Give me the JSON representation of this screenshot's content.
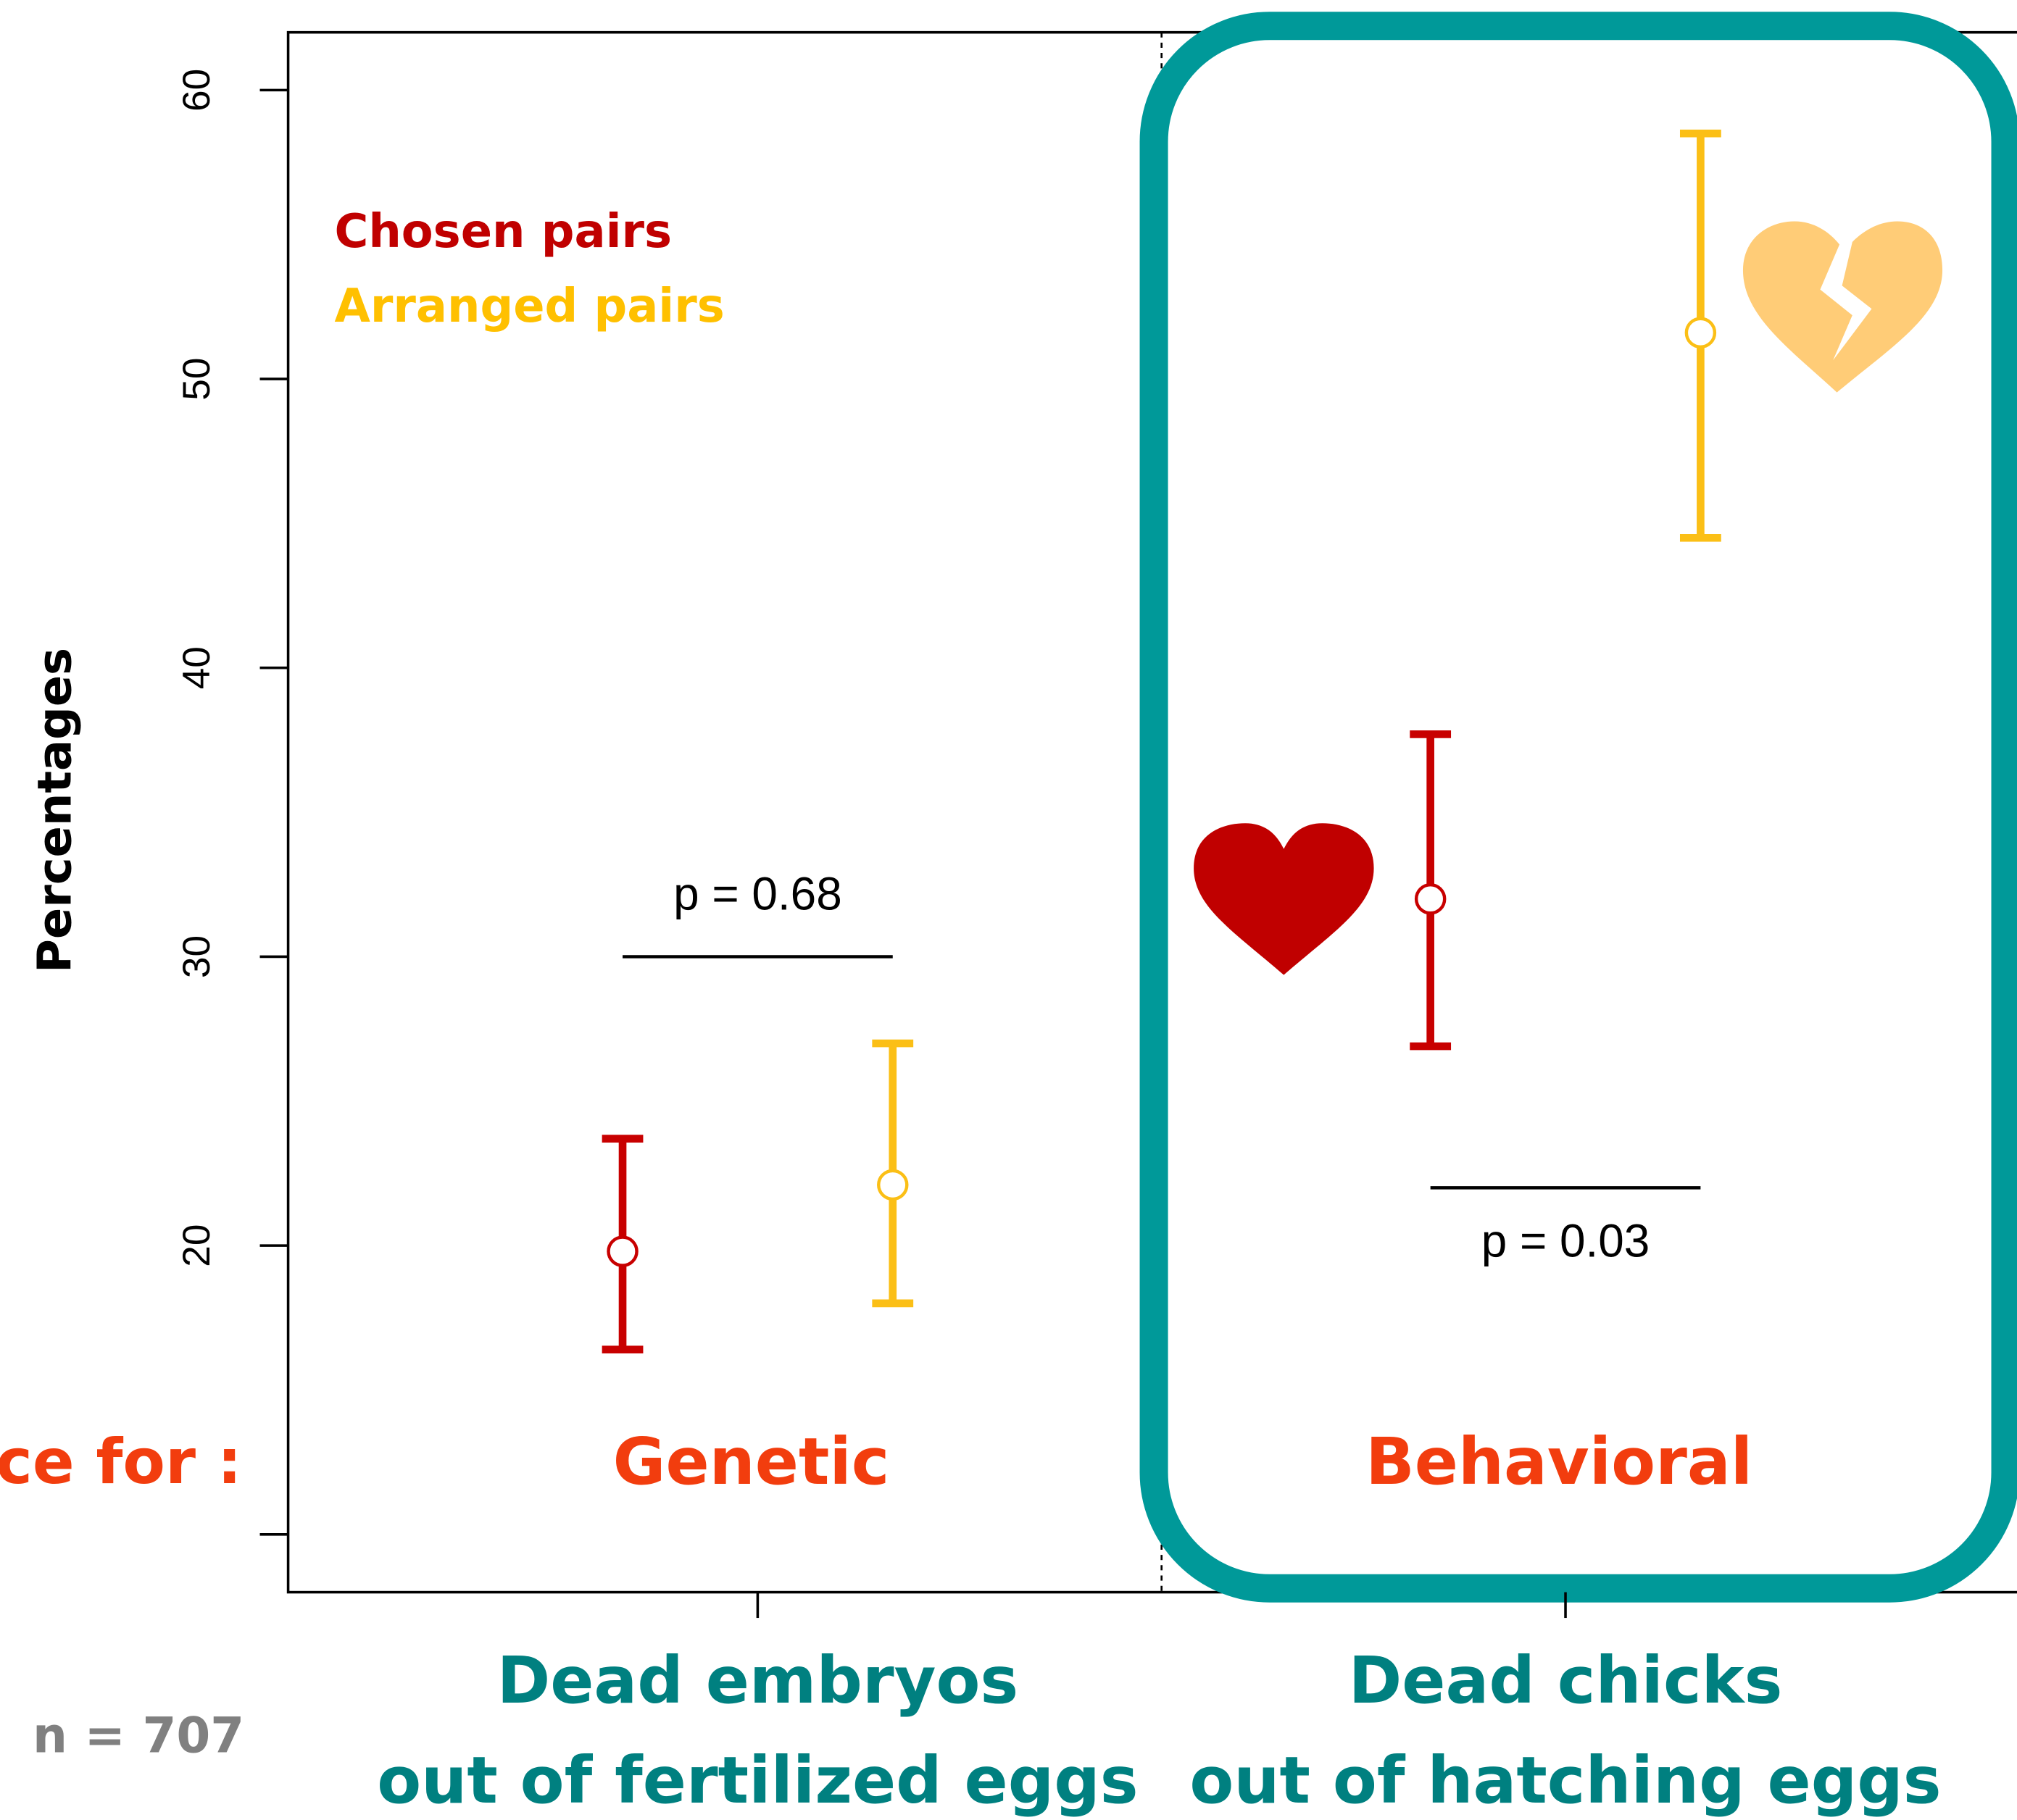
{
  "chart_data": {
    "type": "errorbar",
    "y_label": "Percentages",
    "categories": [
      [
        "Dead embryos",
        "out of fertilized eggs"
      ],
      [
        "Dead chicks",
        "out of hatching eggs"
      ]
    ],
    "group_labels": [
      "Genetic",
      "Behavioral"
    ],
    "group_prefix": "ce for :",
    "note": "n = 707",
    "series": [
      {
        "name": "Chosen pairs",
        "color": "#c80000",
        "values": [
          19.8,
          32.0
        ],
        "lower": [
          16.4,
          26.9
        ],
        "upper": [
          23.7,
          37.7
        ]
      },
      {
        "name": "Arranged pairs",
        "color": "#fbbf16",
        "values": [
          22.1,
          51.6
        ],
        "lower": [
          18.0,
          44.5
        ],
        "upper": [
          27.0,
          58.5
        ]
      }
    ],
    "annotations": [
      {
        "text": "p = 0.68",
        "y": 30
      },
      {
        "text": "p = 0.03",
        "y": 22
      }
    ],
    "ylim": [
      8,
      62
    ],
    "yticks": [
      {
        "value": 10,
        "label": null
      },
      20,
      30,
      40,
      50,
      60
    ]
  }
}
